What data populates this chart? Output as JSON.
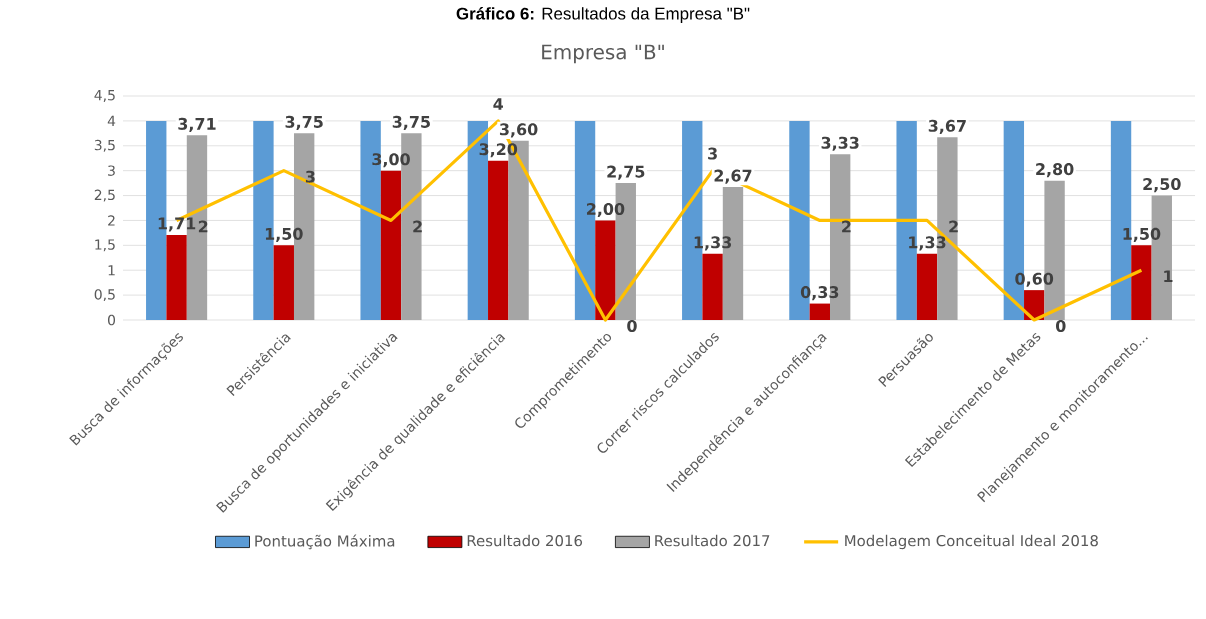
{
  "chart_data": {
    "type": "bar",
    "title": "**Gráfico 6:** Resultados da Empresa \"B\"",
    "subtitle": "Empresa \"B\"",
    "categories": [
      "Busca de informações",
      "Persistência",
      "Busca de oportunidades e iniciativa",
      "Exigência de qualidade e eficiência",
      "Comprometimento",
      "Correr riscos calculados",
      "Independência e autoconfiança",
      "Persuasão",
      "Estabelecimento de Metas",
      "Planejamento e monitoramento..."
    ],
    "series": [
      {
        "name": "Pontuação Máxima",
        "color": "#5b9bd5",
        "values": [
          4,
          4,
          4,
          4,
          4,
          4,
          4,
          4,
          4,
          4
        ]
      },
      {
        "name": "Resultado 2016",
        "color": "#c00000",
        "values": [
          1.71,
          1.5,
          3.0,
          3.2,
          2.0,
          1.33,
          0.33,
          1.33,
          0.6,
          1.5
        ],
        "value_labels": [
          "1,71",
          "1,50",
          "3,00",
          "3,20",
          "2,00",
          "1,33",
          "0,33",
          "1,33",
          "0,60",
          "1,50"
        ]
      },
      {
        "name": "Resultado 2017",
        "color": "#a5a5a5",
        "values": [
          3.71,
          3.75,
          3.75,
          3.6,
          2.75,
          2.67,
          3.33,
          3.67,
          2.8,
          2.5
        ],
        "value_labels": [
          "3,71",
          "3,75",
          "3,75",
          "3,60",
          "2,75",
          "2,67",
          "3,33",
          "3,67",
          "2,80",
          "2,50"
        ]
      },
      {
        "name": "Modelagem Conceitual Ideal 2018",
        "type": "line",
        "color": "#ffc000",
        "values": [
          2,
          3,
          2,
          4,
          0,
          3,
          2,
          2,
          0,
          1
        ],
        "value_labels": [
          "2",
          "3",
          "2",
          "4",
          "0",
          "3",
          "2",
          "2",
          "0",
          "1"
        ]
      }
    ],
    "ylim": [
      0,
      4.5
    ],
    "yticks": [
      0,
      {
        "value": 0.5,
        "label": "0,5"
      },
      1,
      {
        "value": 1.5,
        "label": "1,5"
      },
      2,
      {
        "value": 2.5,
        "label": "2,5"
      },
      3,
      {
        "value": 3.5,
        "label": "3,5"
      },
      4,
      {
        "value": 4.5,
        "label": "4,5"
      }
    ],
    "grid": "y",
    "legend": "bottom"
  }
}
